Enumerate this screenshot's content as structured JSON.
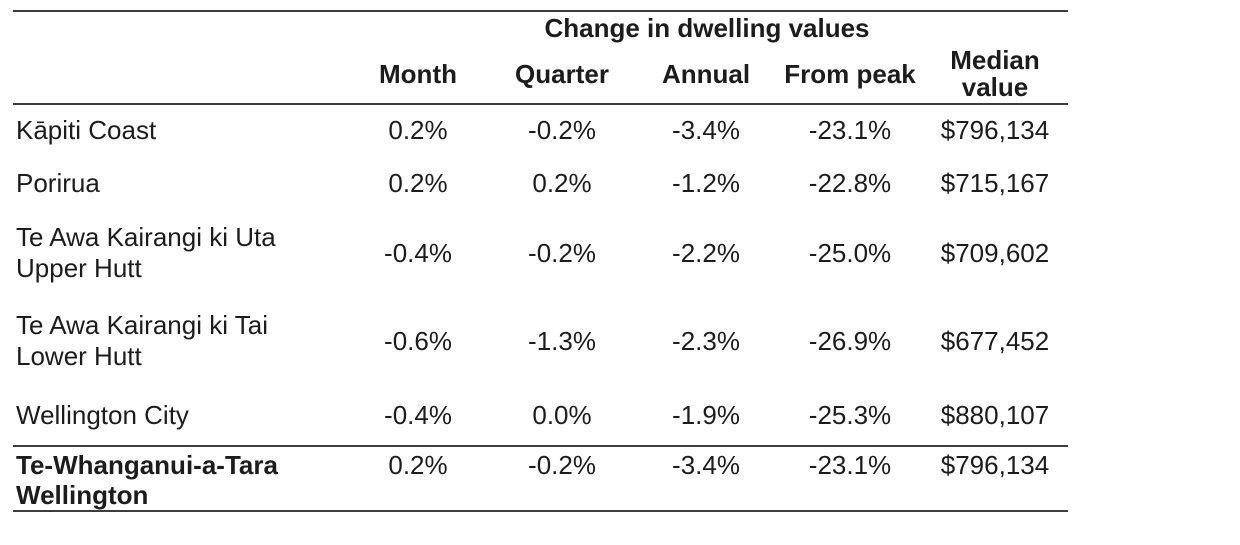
{
  "chart_data": {
    "type": "table",
    "title": "Change in dwelling values",
    "columns": [
      "",
      "Month",
      "Quarter",
      "Annual",
      "From peak",
      "Median value"
    ],
    "rows": [
      [
        "Kāpiti Coast",
        "0.2%",
        "-0.2%",
        "-3.4%",
        "-23.1%",
        "$796,134"
      ],
      [
        "Porirua",
        "0.2%",
        "0.2%",
        "-1.2%",
        "-22.8%",
        "$715,167"
      ],
      [
        "Te Awa Kairangi ki Uta Upper Hutt",
        "-0.4%",
        "-0.2%",
        "-2.2%",
        "-25.0%",
        "$709,602"
      ],
      [
        "Te Awa Kairangi ki Tai Lower Hutt",
        "-0.6%",
        "-1.3%",
        "-2.3%",
        "-26.9%",
        "$677,452"
      ],
      [
        "Wellington City",
        "-0.4%",
        "0.0%",
        "-1.9%",
        "-25.3%",
        "$880,107"
      ],
      [
        "Te-Whanganui-a-Tara Wellington",
        "0.2%",
        "-0.2%",
        "-3.4%",
        "-23.1%",
        "$796,134"
      ]
    ],
    "layout": {
      "gridlines": "horizontal-rules-only",
      "bold_rows": [
        "Te-Whanganui-a-Tara Wellington"
      ]
    }
  },
  "table": {
    "title": "Change in dwelling values",
    "headers": {
      "month": "Month",
      "quarter": "Quarter",
      "annual": "Annual",
      "from_peak": "From peak",
      "median_line1": "Median",
      "median_line2": "value"
    },
    "rows": [
      {
        "label_line1": "Kāpiti Coast",
        "label_line2": "",
        "month": "0.2%",
        "quarter": "-0.2%",
        "annual": "-3.4%",
        "from_peak": "-23.1%",
        "median": "$796,134"
      },
      {
        "label_line1": "Porirua",
        "label_line2": "",
        "month": "0.2%",
        "quarter": "0.2%",
        "annual": "-1.2%",
        "from_peak": "-22.8%",
        "median": "$715,167"
      },
      {
        "label_line1": "Te Awa Kairangi ki Uta",
        "label_line2": "Upper Hutt",
        "month": "-0.4%",
        "quarter": "-0.2%",
        "annual": "-2.2%",
        "from_peak": "-25.0%",
        "median": "$709,602"
      },
      {
        "label_line1": "Te Awa Kairangi ki Tai",
        "label_line2": "Lower Hutt",
        "month": "-0.6%",
        "quarter": "-1.3%",
        "annual": "-2.3%",
        "from_peak": "-26.9%",
        "median": "$677,452"
      },
      {
        "label_line1": "Wellington City",
        "label_line2": "",
        "month": "-0.4%",
        "quarter": "0.0%",
        "annual": "-1.9%",
        "from_peak": "-25.3%",
        "median": "$880,107"
      },
      {
        "label_line1": "Te-Whanganui-a-Tara",
        "label_line2": "Wellington",
        "month": "0.2%",
        "quarter": "-0.2%",
        "annual": "-3.4%",
        "from_peak": "-23.1%",
        "median": "$796,134"
      }
    ]
  },
  "colors": {
    "rule": "#3d3d3d",
    "text": "#1c1c1c",
    "background": "#ffffff"
  }
}
